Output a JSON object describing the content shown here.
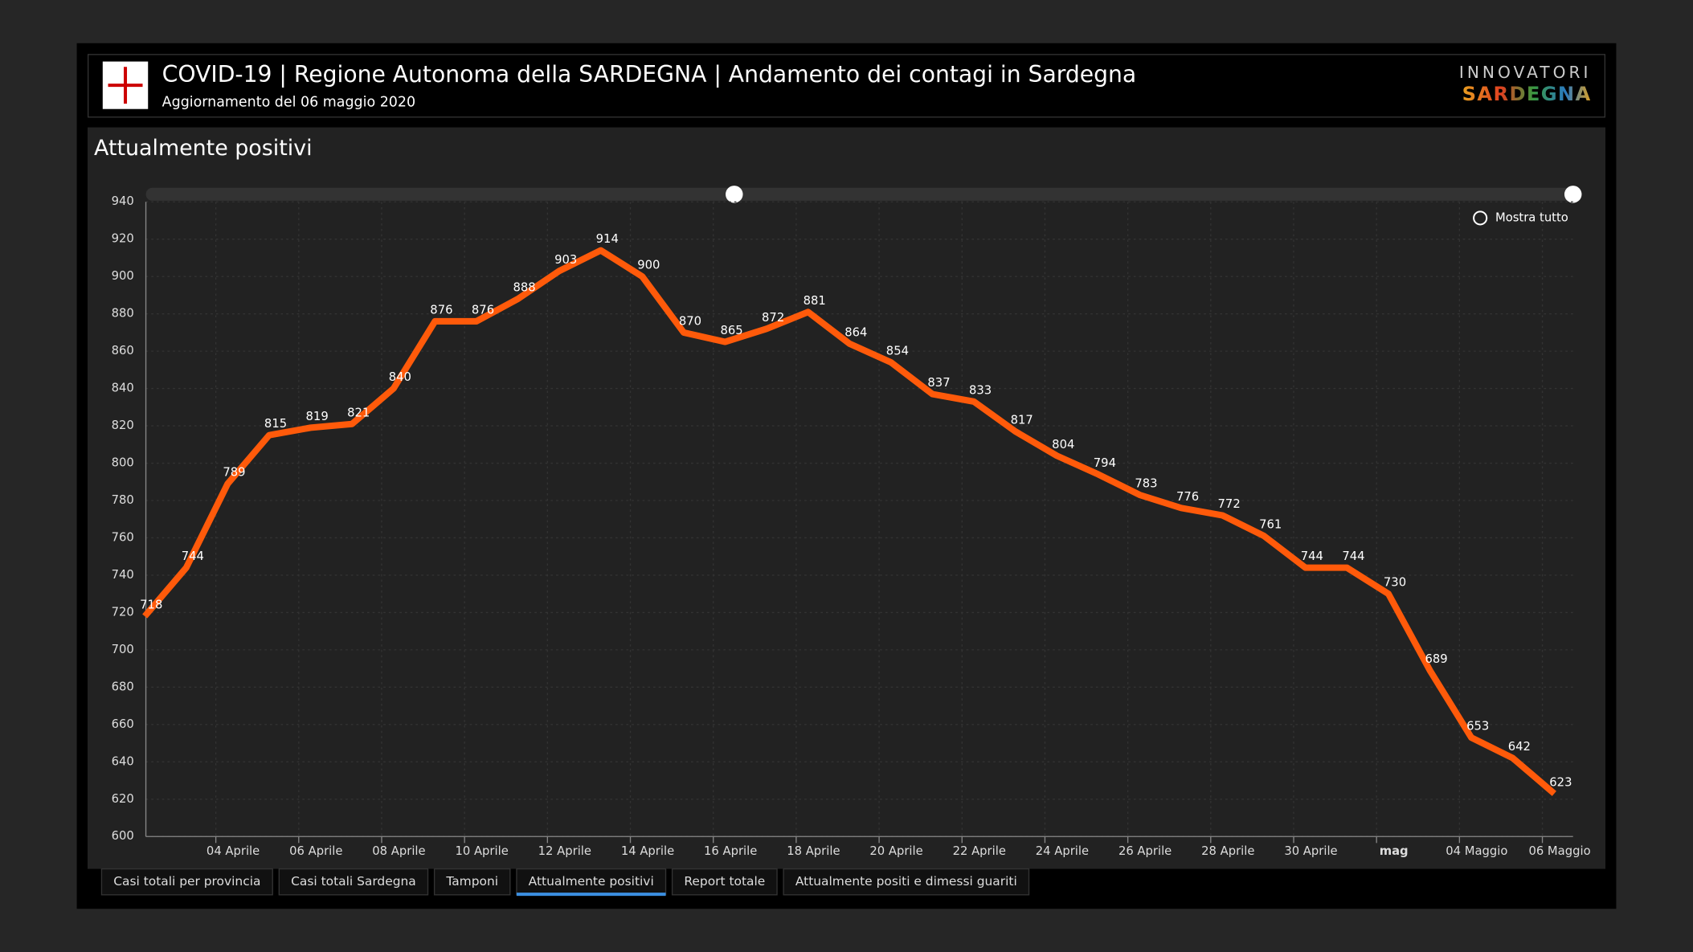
{
  "header": {
    "title": "COVID-19 | Regione Autonoma della SARDEGNA | Andamento dei contagi in Sardegna",
    "subtitle": "Aggiornamento del 06 maggio 2020"
  },
  "brand": {
    "line1": "INNOVATORI",
    "line2": "SARDEGNA"
  },
  "tabs": [
    "Casi totali per provincia",
    "Casi totali Sardegna",
    "Tamponi",
    "Attualmente positivi",
    "Report totale",
    "Attualmente positi e dimessi guariti"
  ],
  "active_tab": 3,
  "chart_data": {
    "type": "line",
    "title": "Attualmente positivi",
    "zoom_label": "Mostra tutto",
    "color": "#ff5a0a",
    "categories": [
      null,
      null,
      "04 Aprile",
      null,
      "06 Aprile",
      null,
      "08 Aprile",
      null,
      "10 Aprile",
      null,
      "12 Aprile",
      null,
      "14 Aprile",
      null,
      "16 Aprile",
      null,
      "18 Aprile",
      null,
      "20 Aprile",
      null,
      "22 Aprile",
      null,
      "24 Aprile",
      null,
      "26 Aprile",
      null,
      "28 Aprile",
      null,
      "30 Aprile",
      null,
      "mag",
      null,
      "04 Maggio",
      null,
      "06 Maggio"
    ],
    "values": [
      718,
      744,
      789,
      815,
      819,
      821,
      840,
      876,
      876,
      888,
      903,
      914,
      900,
      870,
      865,
      872,
      881,
      864,
      854,
      837,
      833,
      817,
      804,
      794,
      783,
      776,
      772,
      761,
      744,
      744,
      730,
      689,
      653,
      642,
      623
    ],
    "ylim": [
      600,
      940
    ],
    "yticks": [
      600,
      620,
      640,
      660,
      680,
      700,
      720,
      740,
      760,
      780,
      800,
      820,
      840,
      860,
      880,
      900,
      920,
      940
    ],
    "grid": true
  }
}
